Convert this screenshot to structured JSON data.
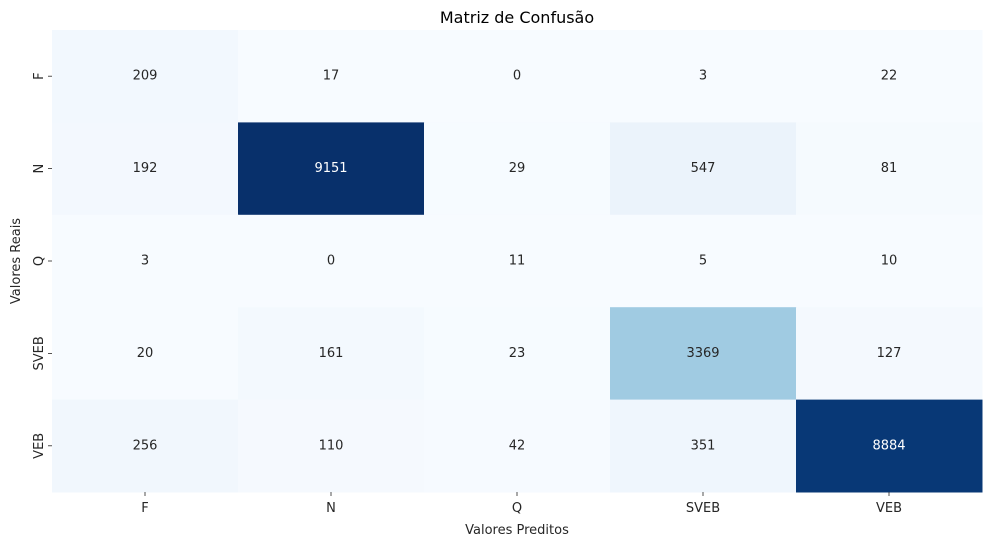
{
  "chart_data": {
    "type": "heatmap",
    "title": "Matriz de Confusão",
    "xlabel": "Valores Preditos",
    "ylabel": "Valores Reais",
    "x_categories": [
      "F",
      "N",
      "Q",
      "SVEB",
      "VEB"
    ],
    "y_categories": [
      "F",
      "N",
      "Q",
      "SVEB",
      "VEB"
    ],
    "values": [
      [
        209,
        17,
        0,
        3,
        22
      ],
      [
        192,
        9151,
        29,
        547,
        81
      ],
      [
        3,
        0,
        11,
        5,
        10
      ],
      [
        20,
        161,
        23,
        3369,
        127
      ],
      [
        256,
        110,
        42,
        351,
        8884
      ]
    ],
    "colormap": "Blues",
    "colors": {
      "low": "#f7fbff",
      "high": "#08306b"
    },
    "colorbar": false,
    "grid": false
  }
}
